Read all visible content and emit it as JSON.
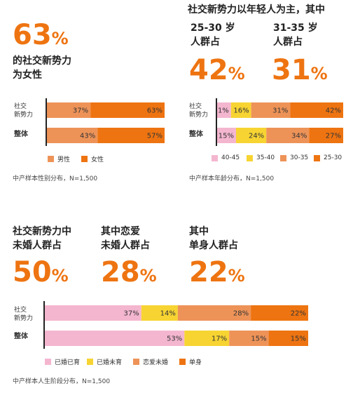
{
  "colors": {
    "accent": "#ee7411",
    "pink": "#f4b6cf",
    "yellow": "#f7d432",
    "salmon": "#ee9358",
    "orange": "#ee7411"
  },
  "gender": {
    "big_value": "63",
    "pct_sign": "%",
    "caption_line1": "的社交新势力",
    "caption_line2": "为女性",
    "row_labels": [
      "社交\n新势力",
      "整体"
    ],
    "legend": [
      "男性",
      "女性"
    ],
    "note": "中产样本性别分布，N=1,500"
  },
  "age": {
    "header": "社交新势力以年轻人为主，其中",
    "group1_label_line1": "25-30 岁",
    "group1_label_line2": "人群占",
    "group1_value": "42",
    "group2_label_line1": "31-35 岁",
    "group2_label_line2": "人群占",
    "group2_value": "31",
    "pct_sign": "%",
    "row_labels": [
      "社交\n新势力",
      "整体"
    ],
    "legend": [
      "40-45",
      "35-40",
      "30-35",
      "25-30"
    ],
    "note": "中产样本年龄分布，N=1,500"
  },
  "life": {
    "block1_line1": "社交新势力中",
    "block1_line2": "未婚人群占",
    "block1_value": "50",
    "block2_line1": "其中恋爱",
    "block2_line2": "未婚人群占",
    "block2_value": "28",
    "block3_line1": "其中",
    "block3_line2": "单身人群占",
    "block3_value": "22",
    "pct_sign": "%",
    "row_labels": [
      "社交\n新势力",
      "整体"
    ],
    "legend": [
      "已婚已育",
      "已婚未育",
      "恋爱未婚",
      "单身"
    ],
    "note": "中产样本人生阶段分布，N=1,500"
  },
  "chart_data": [
    {
      "type": "bar",
      "orientation": "horizontal-stacked",
      "categories": [
        "社交新势力",
        "整体"
      ],
      "series": [
        {
          "name": "男性",
          "color": "#ee9358",
          "values": [
            37,
            43
          ]
        },
        {
          "name": "女性",
          "color": "#ee7411",
          "values": [
            63,
            57
          ]
        }
      ],
      "legend_position": "bottom"
    },
    {
      "type": "bar",
      "orientation": "horizontal-stacked",
      "categories": [
        "社交新势力",
        "整体"
      ],
      "series": [
        {
          "name": "40-45",
          "color": "#f4b6cf",
          "values": [
            11,
            15
          ]
        },
        {
          "name": "35-40",
          "color": "#f7d432",
          "values": [
            16,
            24
          ]
        },
        {
          "name": "30-35",
          "color": "#ee9358",
          "values": [
            31,
            34
          ]
        },
        {
          "name": "25-30",
          "color": "#ee7411",
          "values": [
            42,
            27
          ]
        }
      ],
      "legend_position": "bottom"
    },
    {
      "type": "bar",
      "orientation": "horizontal-stacked",
      "categories": [
        "社交新势力",
        "整体"
      ],
      "series": [
        {
          "name": "已婚已育",
          "color": "#f4b6cf",
          "values": [
            37,
            53
          ]
        },
        {
          "name": "已婚未育",
          "color": "#f7d432",
          "values": [
            14,
            17
          ]
        },
        {
          "name": "恋爱未婚",
          "color": "#ee9358",
          "values": [
            28,
            15
          ]
        },
        {
          "name": "单身",
          "color": "#ee7411",
          "values": [
            22,
            15
          ]
        }
      ],
      "legend_position": "bottom"
    }
  ]
}
